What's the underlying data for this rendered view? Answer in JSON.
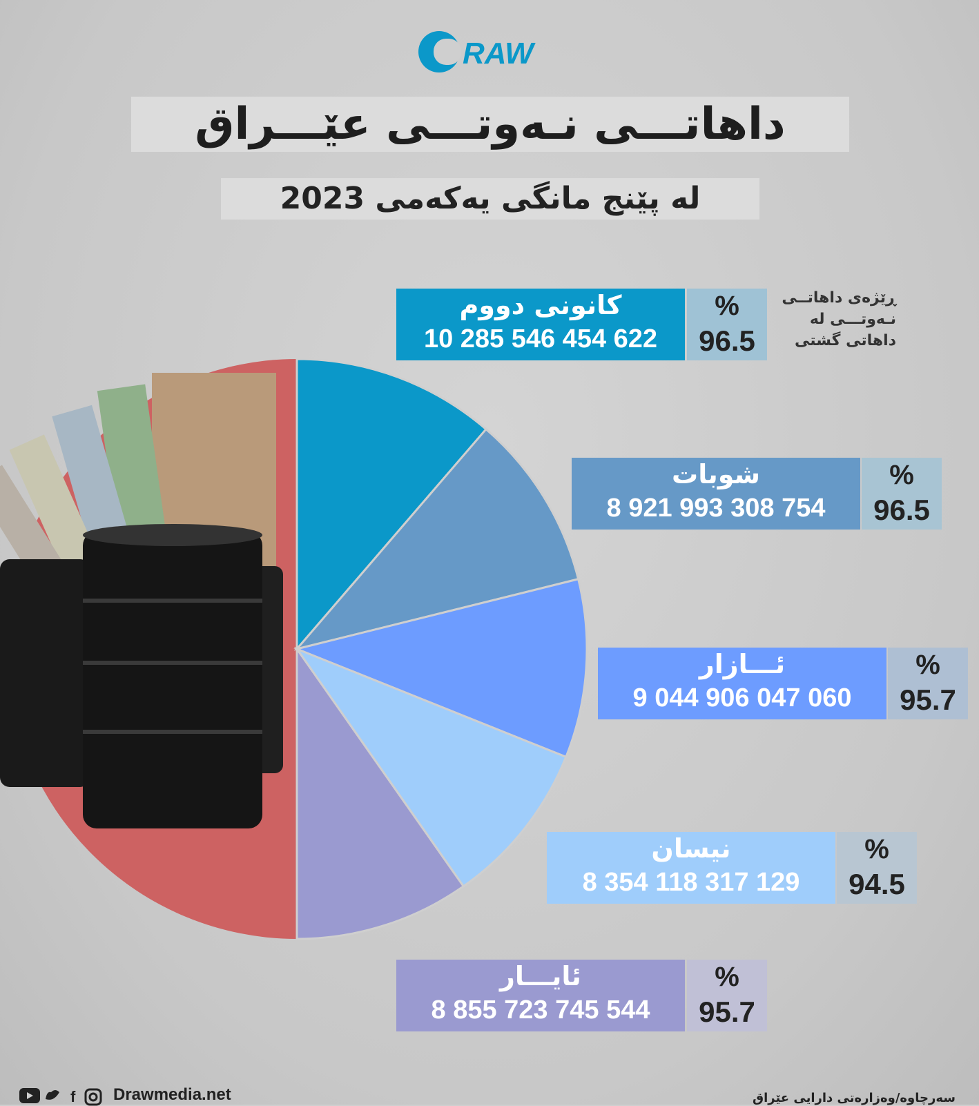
{
  "brand": {
    "logo_text": "RAW"
  },
  "title": "داهاتـــی نـەوتـــی عێـــراق",
  "subtitle": "لە پێنج مانگی یەکەمی 2023",
  "chart_data": {
    "type": "pie",
    "labels": [
      "کانونی دووم",
      "شوبات",
      "ئـــازار",
      "نیسان",
      "ئایـــار"
    ],
    "values": [
      10285546454622,
      8921993308754,
      9044906047060,
      8354118317129,
      8855723745544
    ],
    "values_text": [
      "10 285 546 454 622",
      "8 921 993 308 754",
      "9 044 906 047 060",
      "8 354 118 317 129",
      "8 855 723 745 544"
    ],
    "percents": [
      "96.5",
      "96.5",
      "95.7",
      "94.5",
      "95.7"
    ],
    "pct_symbol": "%",
    "colors": [
      "#0b98c9",
      "#6699c7",
      "#6d9cff",
      "#9fcdfb",
      "#9a9ad0"
    ],
    "remainder_color": "#cd6262",
    "note_lines": [
      "ڕێژەی داهاتــی",
      "نـەوتـــی لە",
      "داهاتی گشتی"
    ]
  },
  "social": {
    "facebook_glyph": "f"
  },
  "footer": {
    "website": "Drawmedia.net",
    "source": "سەرچاوە/وەزارەتی دارایی عێراق"
  }
}
